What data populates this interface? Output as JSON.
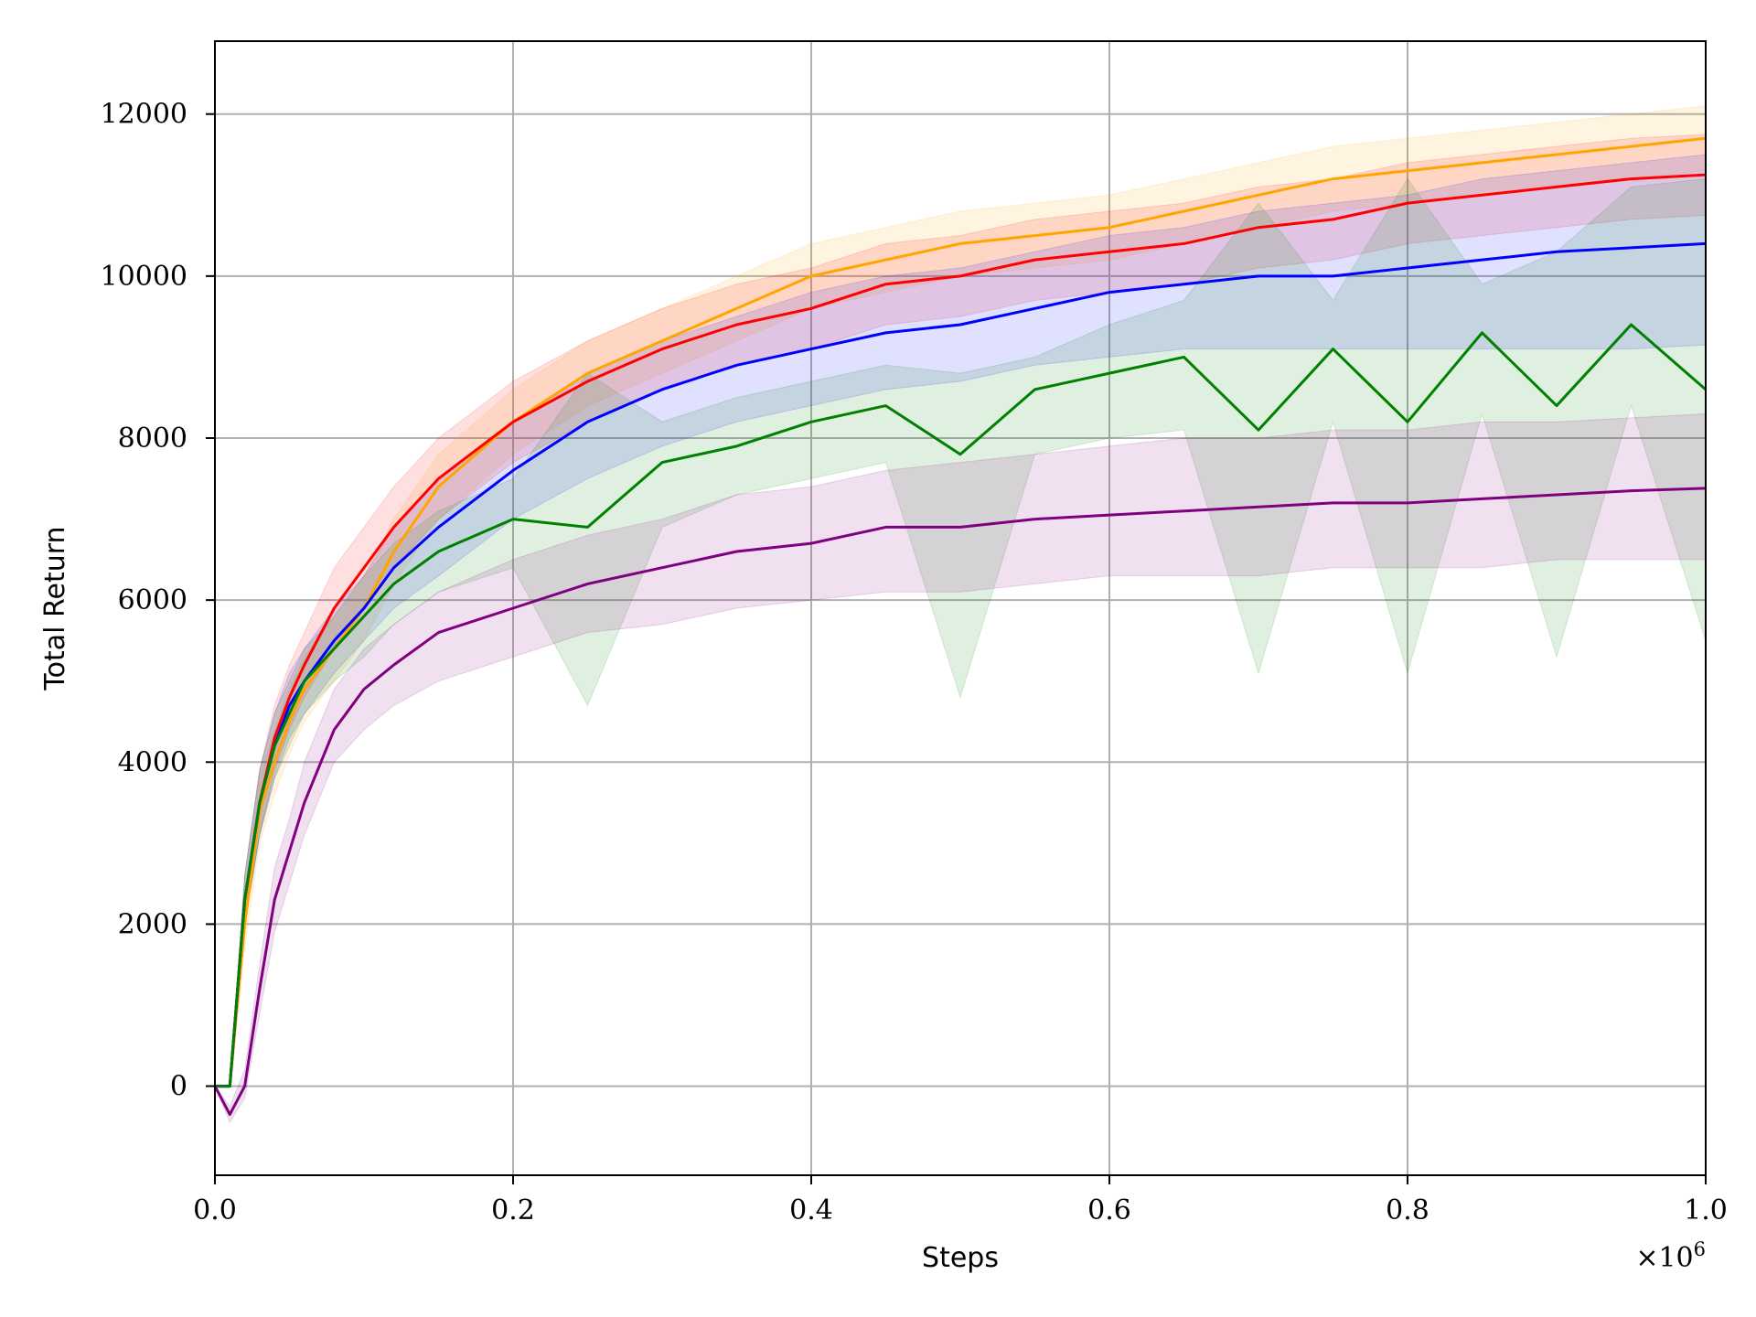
{
  "chart_data": {
    "type": "line",
    "title": "",
    "xlabel": "Steps",
    "ylabel": "Total Return",
    "x_multiplier": "×10",
    "x_multiplier_exp": "6",
    "xlim": [
      0,
      1.0
    ],
    "ylim": [
      -1100,
      12900
    ],
    "x_ticks": [
      0.0,
      0.2,
      0.4,
      0.6,
      0.8,
      1.0
    ],
    "x_tick_labels": [
      "0.0",
      "0.2",
      "0.4",
      "0.6",
      "0.8",
      "1.0"
    ],
    "y_ticks": [
      0,
      2000,
      4000,
      6000,
      8000,
      10000,
      12000
    ],
    "y_tick_labels": [
      "0",
      "2000",
      "4000",
      "6000",
      "8000",
      "10000",
      "12000"
    ],
    "grid": true,
    "legend": "none",
    "x": [
      0.0,
      0.01,
      0.02,
      0.03,
      0.04,
      0.05,
      0.06,
      0.08,
      0.1,
      0.12,
      0.15,
      0.2,
      0.25,
      0.3,
      0.35,
      0.4,
      0.45,
      0.5,
      0.55,
      0.6,
      0.65,
      0.7,
      0.75,
      0.8,
      0.85,
      0.9,
      0.95,
      1.0
    ],
    "series": [
      {
        "color": "#ffa500",
        "values": [
          0,
          0,
          2000,
          3400,
          4000,
          4500,
          4900,
          5400,
          5900,
          6600,
          7400,
          8200,
          8800,
          9200,
          9600,
          10000,
          10200,
          10400,
          10500,
          10600,
          10800,
          11000,
          11200,
          11300,
          11400,
          11500,
          11600,
          11700
        ],
        "lower": [
          0,
          0,
          1700,
          3000,
          3600,
          4100,
          4500,
          5000,
          5500,
          6200,
          7000,
          7800,
          8400,
          8800,
          9200,
          9600,
          9800,
          10000,
          10100,
          10200,
          10400,
          10600,
          10800,
          10900,
          11000,
          11100,
          11200,
          11300
        ],
        "upper": [
          0,
          0,
          2300,
          3800,
          4400,
          4900,
          5300,
          5800,
          6300,
          7000,
          7800,
          8600,
          9200,
          9600,
          10000,
          10400,
          10600,
          10800,
          10900,
          11000,
          11200,
          11400,
          11600,
          11700,
          11800,
          11900,
          12000,
          12100
        ]
      },
      {
        "color": "#ff0000",
        "values": [
          0,
          0,
          2300,
          3500,
          4300,
          4800,
          5200,
          5900,
          6400,
          6900,
          7500,
          8200,
          8700,
          9100,
          9400,
          9600,
          9900,
          10000,
          10200,
          10300,
          10400,
          10600,
          10700,
          10900,
          11000,
          11100,
          11200,
          11250
        ],
        "lower": [
          0,
          0,
          2000,
          3100,
          3900,
          4400,
          4800,
          5400,
          5900,
          6400,
          7000,
          7700,
          8200,
          8600,
          8900,
          9100,
          9400,
          9500,
          9700,
          9800,
          9900,
          10100,
          10200,
          10400,
          10500,
          10600,
          10700,
          10750
        ],
        "upper": [
          0,
          0,
          2600,
          3900,
          4700,
          5200,
          5600,
          6400,
          6900,
          7400,
          8000,
          8700,
          9200,
          9600,
          9900,
          10100,
          10400,
          10500,
          10700,
          10800,
          10900,
          11100,
          11200,
          11400,
          11500,
          11600,
          11700,
          11750
        ]
      },
      {
        "color": "#0000ff",
        "values": [
          0,
          0,
          2300,
          3500,
          4200,
          4700,
          5000,
          5500,
          5900,
          6400,
          6900,
          7600,
          8200,
          8600,
          8900,
          9100,
          9300,
          9400,
          9600,
          9800,
          9900,
          10000,
          10000,
          10100,
          10200,
          10300,
          10350,
          10400
        ],
        "lower": [
          0,
          0,
          2000,
          3100,
          3800,
          4300,
          4600,
          5100,
          5500,
          5900,
          6300,
          7000,
          7500,
          7900,
          8200,
          8400,
          8600,
          8700,
          8900,
          9000,
          9100,
          9100,
          9100,
          9100,
          9100,
          9100,
          9100,
          9150
        ],
        "upper": [
          0,
          0,
          2600,
          3900,
          4600,
          5100,
          5400,
          5900,
          6300,
          6900,
          7500,
          8200,
          8800,
          9200,
          9500,
          9800,
          10000,
          10100,
          10300,
          10500,
          10600,
          10800,
          10900,
          11000,
          11200,
          11300,
          11400,
          11500
        ]
      },
      {
        "color": "#008000",
        "values": [
          0,
          0,
          2300,
          3500,
          4200,
          4600,
          5000,
          5400,
          5800,
          6200,
          6600,
          7000,
          6900,
          7700,
          7900,
          8200,
          8400,
          7800,
          8600,
          8800,
          9000,
          8100,
          9100,
          8200,
          9300,
          8400,
          9400,
          8600
        ],
        "lower": [
          0,
          0,
          2000,
          3100,
          3800,
          4200,
          4600,
          5000,
          5300,
          5700,
          6100,
          6400,
          4700,
          6900,
          7300,
          7500,
          7700,
          4800,
          7800,
          8000,
          8100,
          5100,
          8200,
          5100,
          8300,
          5300,
          8400,
          5500
        ],
        "upper": [
          0,
          0,
          2600,
          3900,
          4600,
          5000,
          5400,
          5800,
          6300,
          6700,
          7100,
          7500,
          8800,
          8200,
          8500,
          8700,
          8900,
          8800,
          9000,
          9400,
          9700,
          10900,
          9700,
          11200,
          9900,
          10300,
          11100,
          11200
        ]
      },
      {
        "color": "#800080",
        "values": [
          0,
          -350,
          0,
          1200,
          2300,
          2900,
          3500,
          4400,
          4900,
          5200,
          5600,
          5900,
          6200,
          6400,
          6600,
          6700,
          6900,
          6900,
          7000,
          7050,
          7100,
          7150,
          7200,
          7200,
          7250,
          7300,
          7350,
          7380
        ],
        "lower": [
          0,
          -450,
          -150,
          900,
          1900,
          2500,
          3100,
          4000,
          4400,
          4700,
          5000,
          5300,
          5600,
          5700,
          5900,
          6000,
          6100,
          6100,
          6200,
          6300,
          6300,
          6300,
          6400,
          6400,
          6400,
          6500,
          6500,
          6500
        ],
        "upper": [
          0,
          -250,
          200,
          1500,
          2700,
          3300,
          4000,
          4900,
          5400,
          5700,
          6100,
          6500,
          6800,
          7000,
          7300,
          7400,
          7600,
          7700,
          7800,
          7900,
          8000,
          8000,
          8100,
          8100,
          8200,
          8200,
          8250,
          8300
        ]
      }
    ]
  }
}
